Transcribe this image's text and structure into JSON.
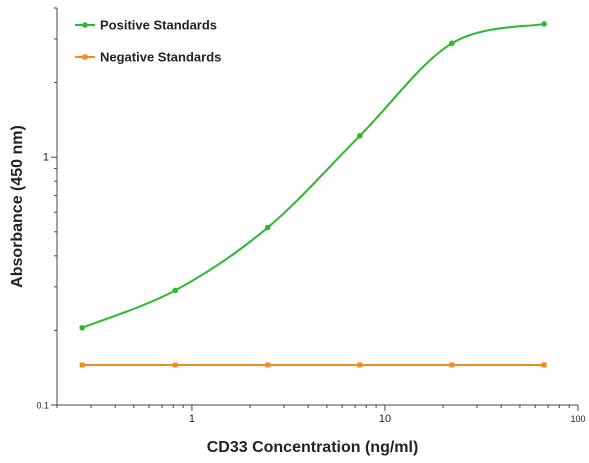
{
  "chart_data": {
    "type": "line",
    "title": "",
    "xlabel": "CD33 Concentration (ng/ml)",
    "ylabel": "Absorbance (450 nm)",
    "x_scale": "log",
    "y_scale": "log",
    "xlim": [
      0.2,
      100
    ],
    "ylim": [
      0.1,
      4.0
    ],
    "x_ticks": [
      {
        "value": 1,
        "label": "1"
      },
      {
        "value": 10,
        "label": "10"
      },
      {
        "value": 100,
        "label": "100"
      }
    ],
    "y_ticks": [
      {
        "value": 0.1,
        "label": "0.1"
      },
      {
        "value": 1,
        "label": "1"
      }
    ],
    "grid": false,
    "legend_position": "top-left",
    "series": [
      {
        "name": "Positive Standards",
        "color": "#2db82d",
        "marker": "circle",
        "curve": "smooth",
        "x": [
          0.27,
          0.82,
          2.47,
          7.41,
          22.2,
          66.7
        ],
        "y": [
          0.205,
          0.29,
          0.52,
          1.22,
          2.88,
          3.45
        ]
      },
      {
        "name": "Negative Standards",
        "color": "#f28c1a",
        "marker": "square",
        "curve": "straight",
        "x": [
          0.27,
          0.82,
          2.47,
          7.41,
          22.2,
          66.7
        ],
        "y": [
          0.145,
          0.145,
          0.145,
          0.145,
          0.145,
          0.145
        ]
      }
    ]
  }
}
